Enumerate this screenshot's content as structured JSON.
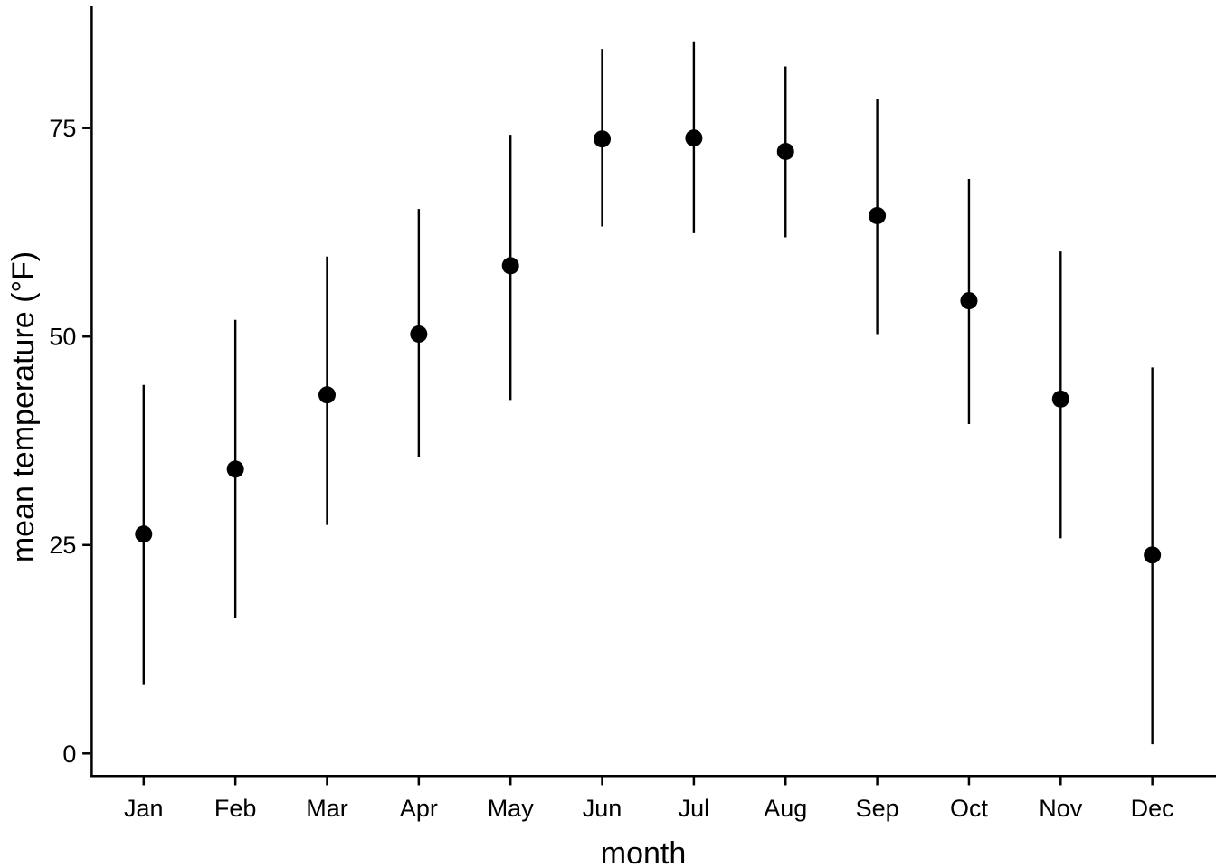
{
  "figure": {
    "background": "#ffffff",
    "axis_color": "#000000",
    "point_color": "#000000",
    "text_color": "#000000"
  },
  "chart_data": {
    "type": "pointrange",
    "title": "",
    "xlabel": "month",
    "ylabel": "mean temperature (°F)",
    "categories": [
      "Jan",
      "Feb",
      "Mar",
      "Apr",
      "May",
      "Jun",
      "Jul",
      "Aug",
      "Sep",
      "Oct",
      "Nov",
      "Dec"
    ],
    "series": [
      {
        "name": "mean temperature",
        "values": [
          26.3,
          34.1,
          43.0,
          50.3,
          58.5,
          73.7,
          73.8,
          72.2,
          64.5,
          54.3,
          42.5,
          23.8
        ],
        "ymin": [
          8.2,
          16.2,
          27.4,
          35.6,
          42.4,
          63.2,
          62.4,
          61.9,
          50.3,
          39.5,
          25.8,
          1.1
        ],
        "ymax": [
          44.2,
          52.0,
          59.6,
          65.3,
          74.2,
          84.5,
          85.4,
          82.4,
          78.5,
          68.9,
          60.2,
          46.3
        ]
      }
    ],
    "yticks": [
      0,
      25,
      50,
      75
    ],
    "ylim": [
      -2.8,
      89.6
    ],
    "xlim_categories": 12,
    "grid": false,
    "legend": false
  }
}
